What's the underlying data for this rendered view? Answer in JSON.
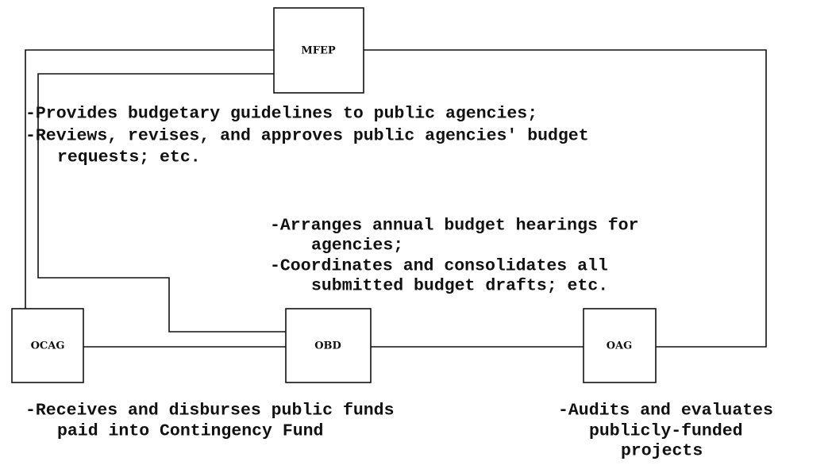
{
  "nodes": [
    {
      "label": "MFEP",
      "description": [
        "-Provides budgetary guidelines to public agencies;",
        "-Reviews, revises, and approves public agencies' budget",
        "requests; etc."
      ]
    },
    {
      "label": "OCAG",
      "description": [
        "-Receives and disburses public funds",
        "paid into Contingency Fund"
      ]
    },
    {
      "label": "OBD",
      "description": [
        "-Arranges annual budget hearings for",
        "agencies;",
        "-Coordinates and consolidates all",
        "submitted budget drafts; etc."
      ]
    },
    {
      "label": "OAG",
      "description": [
        "-Audits and evaluates",
        "publicly-funded",
        "projects"
      ]
    }
  ]
}
